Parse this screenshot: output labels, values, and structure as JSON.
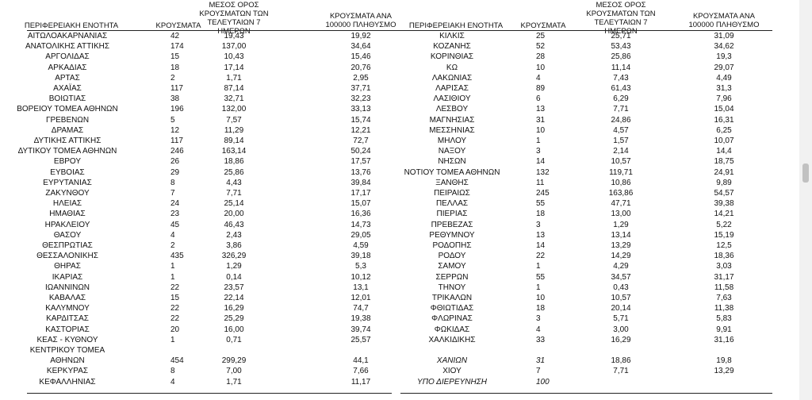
{
  "headers": {
    "region": "ΠΕΡΙΦΕΡΕΙΑΚΗ ΕΝΟΤΗΤΑ",
    "cases": "ΚΡΟΥΣΜΑΤΑ",
    "avg_l1": "ΜΕΣΟΣ ΟΡΟΣ",
    "avg_l2": "ΚΡΟΥΣΜΑΤΩΝ ΤΩΝ",
    "avg_l3": "ΤΕΛΕΥΤΑΙΩΝ 7 ΗΜΕΡΩΝ",
    "per_l1": "ΚΡΟΥΣΜΑΤΑ ΑΝΑ",
    "per_l2": "100000 ΠΛΗΘΥΣΜΟ",
    "avg_r1": "ΜΕΣΟΣ ΟΡΟΣ",
    "avg_r2": "ΚΡΟΥΣΜΑΤΩΝ ΤΩΝ",
    "avg_r3": "ΤΕΛΕΥΤΑΙΩΝ 7 ΗΜΕΡΩΝ",
    "per_r1": "ΚΡΟΥΣΜΑΤΑ ΑΝΑ",
    "per_r2": "100000 ΠΛΗΘΥΣΜΟ"
  },
  "left_rows": [
    {
      "region": "ΑΙΤΩΛΟΑΚΑΡΝΑΝΙΑΣ",
      "cases": "42",
      "avg": "19,43",
      "per": "19,92"
    },
    {
      "region": "ΑΝΑΤΟΛΙΚΗΣ ΑΤΤΙΚΗΣ",
      "cases": "174",
      "avg": "137,00",
      "per": "34,64"
    },
    {
      "region": "ΑΡΓΟΛΙΔΑΣ",
      "cases": "15",
      "avg": "10,43",
      "per": "15,46"
    },
    {
      "region": "ΑΡΚΑΔΙΑΣ",
      "cases": "18",
      "avg": "17,14",
      "per": "20,76"
    },
    {
      "region": "ΑΡΤΑΣ",
      "cases": "2",
      "avg": "1,71",
      "per": "2,95"
    },
    {
      "region": "ΑΧΑΪΑΣ",
      "cases": "117",
      "avg": "87,14",
      "per": "37,71"
    },
    {
      "region": "ΒΟΙΩΤΙΑΣ",
      "cases": "38",
      "avg": "32,71",
      "per": "32,23"
    },
    {
      "region": "ΒΟΡΕΙΟΥ ΤΟΜΕΑ ΑΘΗΝΩΝ",
      "cases": "196",
      "avg": "132,00",
      "per": "33,13"
    },
    {
      "region": "ΓΡΕΒΕΝΩΝ",
      "cases": "5",
      "avg": "7,57",
      "per": "15,74"
    },
    {
      "region": "ΔΡΑΜΑΣ",
      "cases": "12",
      "avg": "11,29",
      "per": "12,21"
    },
    {
      "region": "ΔΥΤΙΚΗΣ ΑΤΤΙΚΗΣ",
      "cases": "117",
      "avg": "89,14",
      "per": "72,7"
    },
    {
      "region": "ΔΥΤΙΚΟΥ ΤΟΜΕΑ ΑΘΗΝΩΝ",
      "cases": "246",
      "avg": "163,14",
      "per": "50,24"
    },
    {
      "region": "ΕΒΡΟΥ",
      "cases": "26",
      "avg": "18,86",
      "per": "17,57"
    },
    {
      "region": "ΕΥΒΟΙΑΣ",
      "cases": "29",
      "avg": "25,86",
      "per": "13,76"
    },
    {
      "region": "ΕΥΡΥΤΑΝΙΑΣ",
      "cases": "8",
      "avg": "4,43",
      "per": "39,84"
    },
    {
      "region": "ΖΑΚΥΝΘΟΥ",
      "cases": "7",
      "avg": "7,71",
      "per": "17,17"
    },
    {
      "region": "ΗΛΕΙΑΣ",
      "cases": "24",
      "avg": "25,14",
      "per": "15,07"
    },
    {
      "region": "ΗΜΑΘΙΑΣ",
      "cases": "23",
      "avg": "20,00",
      "per": "16,36"
    },
    {
      "region": "ΗΡΑΚΛΕΙΟΥ",
      "cases": "45",
      "avg": "46,43",
      "per": "14,73"
    },
    {
      "region": "ΘΑΣΟΥ",
      "cases": "4",
      "avg": "2,43",
      "per": "29,05"
    },
    {
      "region": "ΘΕΣΠΡΩΤΙΑΣ",
      "cases": "2",
      "avg": "3,86",
      "per": "4,59"
    },
    {
      "region": "ΘΕΣΣΑΛΟΝΙΚΗΣ",
      "cases": "435",
      "avg": "326,29",
      "per": "39,18"
    },
    {
      "region": "ΘΗΡΑΣ",
      "cases": "1",
      "avg": "1,29",
      "per": "5,3"
    },
    {
      "region": "ΙΚΑΡΙΑΣ",
      "cases": "1",
      "avg": "0,14",
      "per": "10,12"
    },
    {
      "region": "ΙΩΑΝΝΙΝΩΝ",
      "cases": "22",
      "avg": "23,57",
      "per": "13,1"
    },
    {
      "region": "ΚΑΒΑΛΑΣ",
      "cases": "15",
      "avg": "22,14",
      "per": "12,01"
    },
    {
      "region": "ΚΑΛΥΜΝΟΥ",
      "cases": "22",
      "avg": "16,29",
      "per": "74,7"
    },
    {
      "region": "ΚΑΡΔΙΤΣΑΣ",
      "cases": "22",
      "avg": "25,29",
      "per": "19,38"
    },
    {
      "region": "ΚΑΣΤΟΡΙΑΣ",
      "cases": "20",
      "avg": "16,00",
      "per": "39,74"
    },
    {
      "region": "ΚΕΑΣ - ΚΥΘΝΟΥ",
      "cases": "1",
      "avg": "0,71",
      "per": "25,57"
    },
    {
      "region": "ΚΕΝΤΡΙΚΟΥ ΤΟΜΕΑ",
      "cases": "",
      "avg": "",
      "per": ""
    },
    {
      "region": "ΑΘΗΝΩΝ",
      "cases": "454",
      "avg": "299,29",
      "per": "44,1"
    },
    {
      "region": "ΚΕΡΚΥΡΑΣ",
      "cases": "8",
      "avg": "7,00",
      "per": "7,66"
    },
    {
      "region": "ΚΕΦΑΛΛΗΝΙΑΣ",
      "cases": "4",
      "avg": "1,71",
      "per": "11,17"
    }
  ],
  "right_rows": [
    {
      "region": "ΚΙΛΚΙΣ",
      "cases": "25",
      "avg": "25,71",
      "per": "31,09"
    },
    {
      "region": "ΚΟΖΑΝΗΣ",
      "cases": "52",
      "avg": "53,43",
      "per": "34,62"
    },
    {
      "region": "ΚΟΡΙΝΘΙΑΣ",
      "cases": "28",
      "avg": "25,86",
      "per": "19,3"
    },
    {
      "region": "ΚΩ",
      "cases": "10",
      "avg": "11,14",
      "per": "29,07"
    },
    {
      "region": "ΛΑΚΩΝΙΑΣ",
      "cases": "4",
      "avg": "7,43",
      "per": "4,49"
    },
    {
      "region": "ΛΑΡΙΣΑΣ",
      "cases": "89",
      "avg": "61,43",
      "per": "31,3"
    },
    {
      "region": "ΛΑΣΙΘΙΟΥ",
      "cases": "6",
      "avg": "6,29",
      "per": "7,96"
    },
    {
      "region": "ΛΕΣΒΟΥ",
      "cases": "13",
      "avg": "7,71",
      "per": "15,04"
    },
    {
      "region": "ΜΑΓΝΗΣΙΑΣ",
      "cases": "31",
      "avg": "24,86",
      "per": "16,31"
    },
    {
      "region": "ΜΕΣΣΗΝΙΑΣ",
      "cases": "10",
      "avg": "4,57",
      "per": "6,25"
    },
    {
      "region": "ΜΗΛΟΥ",
      "cases": "1",
      "avg": "1,57",
      "per": "10,07"
    },
    {
      "region": "ΝΑΞΟΥ",
      "cases": "3",
      "avg": "2,14",
      "per": "14,4"
    },
    {
      "region": "ΝΗΣΩΝ",
      "cases": "14",
      "avg": "10,57",
      "per": "18,75"
    },
    {
      "region": "ΝΟΤΙΟΥ ΤΟΜΕΑ ΑΘΗΝΩΝ",
      "cases": "132",
      "avg": "119,71",
      "per": "24,91"
    },
    {
      "region": "ΞΑΝΘΗΣ",
      "cases": "11",
      "avg": "10,86",
      "per": "9,89"
    },
    {
      "region": "ΠΕΙΡΑΙΩΣ",
      "cases": "245",
      "avg": "163,86",
      "per": "54,57"
    },
    {
      "region": "ΠΕΛΛΑΣ",
      "cases": "55",
      "avg": "47,71",
      "per": "39,38"
    },
    {
      "region": "ΠΙΕΡΙΑΣ",
      "cases": "18",
      "avg": "13,00",
      "per": "14,21"
    },
    {
      "region": "ΠΡΕΒΕΖΑΣ",
      "cases": "3",
      "avg": "1,29",
      "per": "5,22"
    },
    {
      "region": "ΡΕΘΥΜΝΟΥ",
      "cases": "13",
      "avg": "13,14",
      "per": "15,19"
    },
    {
      "region": "ΡΟΔΟΠΗΣ",
      "cases": "14",
      "avg": "13,29",
      "per": "12,5"
    },
    {
      "region": "ΡΟΔΟΥ",
      "cases": "22",
      "avg": "14,29",
      "per": "18,36"
    },
    {
      "region": "ΣΑΜΟΥ",
      "cases": "1",
      "avg": "4,29",
      "per": "3,03"
    },
    {
      "region": "ΣΕΡΡΩΝ",
      "cases": "55",
      "avg": "34,57",
      "per": "31,17"
    },
    {
      "region": "ΤΗΝΟΥ",
      "cases": "1",
      "avg": "0,43",
      "per": "11,58"
    },
    {
      "region": "ΤΡΙΚΑΛΩΝ",
      "cases": "10",
      "avg": "10,57",
      "per": "7,63"
    },
    {
      "region": "ΦΘΙΩΤΙΔΑΣ",
      "cases": "18",
      "avg": "20,14",
      "per": "11,38"
    },
    {
      "region": "ΦΛΩΡΙΝΑΣ",
      "cases": "3",
      "avg": "5,71",
      "per": "5,83"
    },
    {
      "region": "ΦΩΚΙΔΑΣ",
      "cases": "4",
      "avg": "3,00",
      "per": "9,91"
    },
    {
      "region": "ΧΑΛΚΙΔΙΚΗΣ",
      "cases": "33",
      "avg": "16,29",
      "per": "31,16"
    },
    {
      "region": "",
      "cases": "",
      "avg": "",
      "per": ""
    },
    {
      "region": "ΧΑΝΙΩΝ",
      "cases": "31",
      "avg": "18,86",
      "per": "19,8",
      "italic": true
    },
    {
      "region": "ΧΙΟΥ",
      "cases": "7",
      "avg": "7,71",
      "per": "13,29"
    },
    {
      "region": "ΥΠΟ ΔΙΕΡΕΥΝΗΣΗ",
      "cases": "100",
      "avg": "",
      "per": "",
      "italic": true
    }
  ]
}
